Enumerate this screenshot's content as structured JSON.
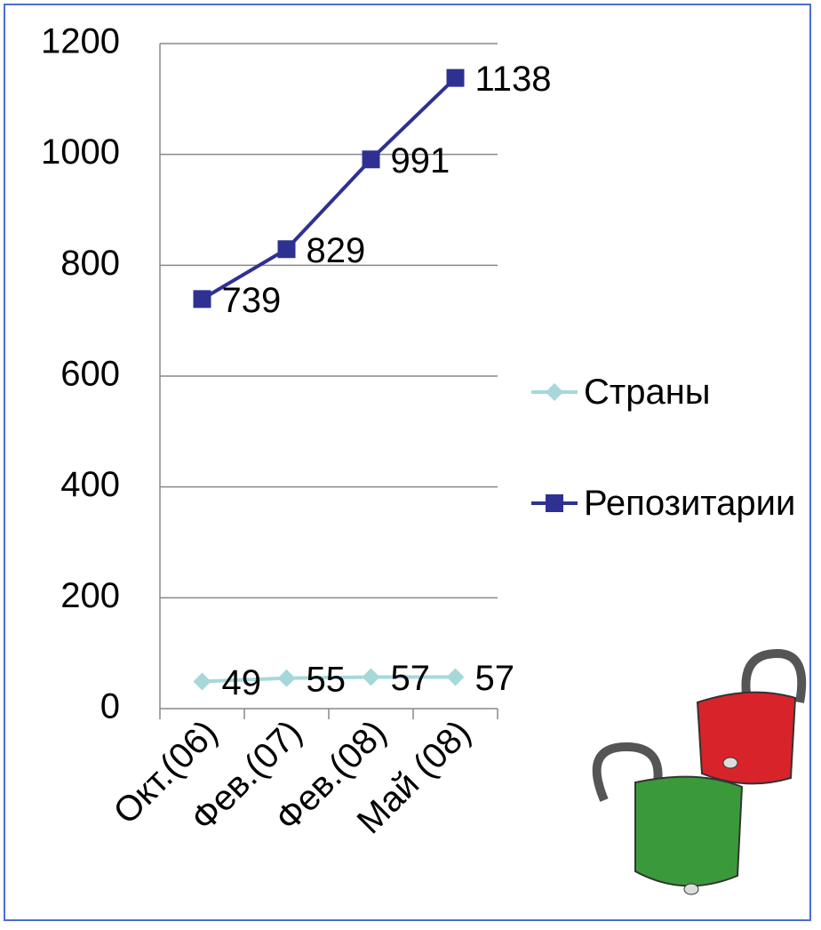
{
  "chart_data": {
    "type": "line",
    "categories": [
      "Окт.(06)",
      "Фев.(07)",
      "Фев.(08)",
      "Май (08)"
    ],
    "series": [
      {
        "name": "Страны",
        "color": "#a6d8da",
        "marker": "diamond",
        "values": [
          49,
          55,
          57,
          57
        ]
      },
      {
        "name": "Репозитарии",
        "color": "#2e3192",
        "marker": "square",
        "values": [
          739,
          829,
          991,
          1138
        ]
      }
    ],
    "ylim": [
      0,
      1200
    ],
    "yticks": [
      0,
      200,
      400,
      600,
      800,
      1000,
      1200
    ],
    "grid": true,
    "legend": "right"
  }
}
